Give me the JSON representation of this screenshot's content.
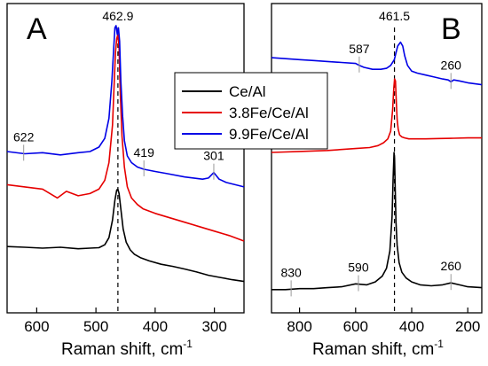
{
  "chart_data": [
    {
      "type": "line",
      "panel_label": "A",
      "xlabel": "Raman shift, cm",
      "xlabel_sup": "-1",
      "xlim": [
        650,
        250
      ],
      "x_reversed": true,
      "xticks": [
        600,
        500,
        400,
        300
      ],
      "y_tick_labels": false,
      "reference_line": {
        "x": 462.9,
        "label": "462.9",
        "style": "dashed"
      },
      "annotations": [
        {
          "label": "622",
          "x": 622,
          "series": "9.9Fe/Ce/Al"
        },
        {
          "label": "419",
          "x": 419,
          "series": "9.9Fe/Ce/Al"
        },
        {
          "label": "301",
          "x": 301,
          "series": "9.9Fe/Ce/Al"
        }
      ],
      "series": [
        {
          "name": "Ce/Al",
          "color": "#000000",
          "x": [
            650,
            620,
            590,
            560,
            530,
            510,
            495,
            485,
            478,
            472,
            468,
            465,
            463,
            461,
            458,
            454,
            449,
            442,
            435,
            425,
            410,
            390,
            370,
            350,
            330,
            310,
            290,
            270,
            250
          ],
          "y": [
            3.0,
            2.97,
            2.93,
            2.97,
            2.9,
            2.93,
            2.95,
            3.08,
            3.4,
            4.2,
            5.1,
            5.55,
            5.6,
            5.4,
            4.7,
            3.8,
            3.2,
            2.85,
            2.65,
            2.5,
            2.35,
            2.2,
            2.1,
            1.98,
            1.85,
            1.7,
            1.6,
            1.5,
            1.42
          ]
        },
        {
          "name": "3.8Fe/Ce/Al",
          "color": "#e60000",
          "x": [
            650,
            620,
            590,
            565,
            550,
            530,
            510,
            495,
            485,
            478,
            472,
            469,
            467,
            465,
            463,
            461,
            459,
            456,
            452,
            447,
            440,
            430,
            420,
            400,
            375,
            350,
            325,
            300,
            275,
            250
          ],
          "y": [
            5.8,
            5.7,
            5.6,
            5.2,
            5.5,
            5.3,
            5.4,
            5.6,
            6.0,
            6.8,
            8.5,
            10.5,
            11.8,
            12.4,
            12.6,
            12.0,
            10.0,
            8.0,
            6.6,
            5.7,
            5.2,
            4.9,
            4.7,
            4.5,
            4.3,
            4.1,
            3.9,
            3.7,
            3.5,
            3.25
          ]
        },
        {
          "name": "9.9Fe/Ce/Al",
          "color": "#0000e6",
          "x": [
            650,
            620,
            590,
            560,
            530,
            510,
            495,
            485,
            478,
            473,
            470,
            468,
            466,
            464,
            462,
            460,
            458,
            455,
            452,
            447,
            440,
            430,
            419,
            400,
            380,
            350,
            320,
            310,
            301,
            292,
            280,
            265,
            250
          ],
          "y": [
            7.3,
            7.2,
            7.25,
            7.15,
            7.25,
            7.3,
            7.5,
            7.9,
            8.8,
            10.5,
            12.0,
            12.9,
            13.0,
            12.6,
            12.9,
            12.3,
            10.5,
            8.9,
            7.8,
            7.1,
            6.8,
            6.6,
            6.5,
            6.4,
            6.3,
            6.15,
            6.05,
            6.1,
            6.35,
            6.05,
            5.9,
            5.8,
            5.7
          ]
        }
      ],
      "legend": {
        "placement": "center",
        "entries": [
          {
            "name": "Ce/Al",
            "color": "#000000"
          },
          {
            "name": "3.8Fe/Ce/Al",
            "color": "#e60000"
          },
          {
            "name": "9.9Fe/Ce/Al",
            "color": "#0000e6"
          }
        ]
      },
      "ylim": [
        0,
        14
      ]
    },
    {
      "type": "line",
      "panel_label": "B",
      "xlabel": "Raman shift, cm",
      "xlabel_sup": "-1",
      "xlim": [
        900,
        150
      ],
      "x_reversed": true,
      "xticks": [
        800,
        600,
        400,
        200
      ],
      "y_tick_labels": false,
      "reference_line": {
        "x": 461.5,
        "label": "461.5",
        "style": "dashed"
      },
      "annotations": [
        {
          "label": "587",
          "x": 587,
          "series": "9.9Fe/Ce/Al"
        },
        {
          "label": "260",
          "x": 260,
          "series": "9.9Fe/Ce/Al"
        },
        {
          "label": "830",
          "x": 830,
          "series": "Ce/Al"
        },
        {
          "label": "590",
          "x": 590,
          "series": "Ce/Al"
        },
        {
          "label": "260",
          "x": 260,
          "series": "Ce/Al"
        }
      ],
      "series": [
        {
          "name": "Ce/Al",
          "color": "#000000",
          "x": [
            900,
            850,
            800,
            750,
            700,
            650,
            600,
            560,
            530,
            505,
            490,
            478,
            470,
            466,
            463,
            461,
            459,
            456,
            452,
            445,
            435,
            420,
            400,
            370,
            330,
            290,
            260,
            230,
            200,
            150
          ],
          "y": [
            1.2,
            1.2,
            1.25,
            1.25,
            1.3,
            1.35,
            1.5,
            1.45,
            1.6,
            1.9,
            2.3,
            3.2,
            5.0,
            7.0,
            8.3,
            8.0,
            6.5,
            4.7,
            3.5,
            2.6,
            2.1,
            1.8,
            1.6,
            1.45,
            1.4,
            1.45,
            1.55,
            1.45,
            1.35,
            1.3
          ]
        },
        {
          "name": "3.8Fe/Ce/Al",
          "color": "#e60000",
          "x": [
            900,
            800,
            700,
            600,
            550,
            520,
            500,
            485,
            475,
            468,
            464,
            461,
            458,
            455,
            452,
            448,
            443,
            435,
            425,
            410,
            390,
            350,
            300,
            250,
            200,
            150
          ],
          "y": [
            8.3,
            8.35,
            8.4,
            8.5,
            8.55,
            8.65,
            8.8,
            9.0,
            9.4,
            10.5,
            11.6,
            12.1,
            12.0,
            11.0,
            10.0,
            9.5,
            9.2,
            9.1,
            9.05,
            9.0,
            9.0,
            9.0,
            9.02,
            9.03,
            9.05,
            9.05
          ]
        },
        {
          "name": "9.9Fe/Ce/Al",
          "color": "#0000e6",
          "x": [
            900,
            850,
            800,
            750,
            700,
            650,
            600,
            587,
            570,
            540,
            510,
            490,
            475,
            462,
            450,
            440,
            432,
            425,
            415,
            400,
            380,
            350,
            320,
            290,
            270,
            260,
            250,
            230,
            200,
            150
          ],
          "y": [
            13.2,
            13.15,
            13.1,
            13.05,
            13.0,
            12.95,
            12.9,
            12.8,
            12.7,
            12.6,
            12.6,
            12.65,
            12.8,
            13.1,
            13.8,
            14.0,
            13.8,
            13.3,
            12.8,
            12.5,
            12.4,
            12.3,
            12.2,
            12.1,
            12.05,
            11.95,
            12.05,
            12.0,
            11.9,
            11.8
          ]
        }
      ],
      "ylim": [
        0,
        16
      ]
    }
  ]
}
